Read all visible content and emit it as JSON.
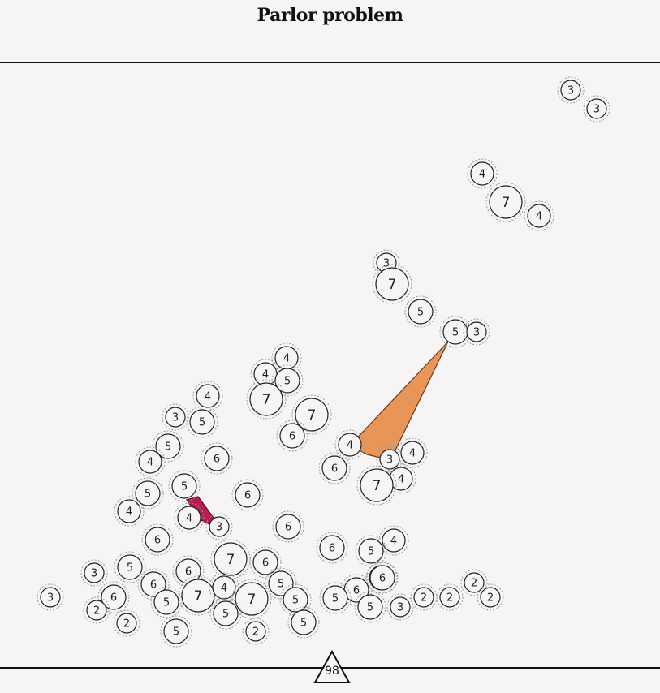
{
  "title": "Parlor problem",
  "score": "98",
  "colors": {
    "orange_region": "#e8955a",
    "crimson_region": "#b81e4f",
    "background": "#f6f4f5"
  },
  "nodes": [
    {
      "v": 3
    },
    {
      "v": 3
    },
    {
      "v": 4
    },
    {
      "v": 7
    },
    {
      "v": 4
    },
    {
      "v": 3
    },
    {
      "v": 7
    },
    {
      "v": 5
    },
    {
      "v": 5
    },
    {
      "v": 3
    },
    {
      "v": 4
    },
    {
      "v": 4
    },
    {
      "v": 5
    },
    {
      "v": 7
    },
    {
      "v": 7
    },
    {
      "v": 6
    },
    {
      "v": 4
    },
    {
      "v": 3
    },
    {
      "v": 5
    },
    {
      "v": 5
    },
    {
      "v": 6
    },
    {
      "v": 4
    },
    {
      "v": 4
    },
    {
      "v": 6
    },
    {
      "v": 3
    },
    {
      "v": 4
    },
    {
      "v": 4
    },
    {
      "v": 7
    },
    {
      "v": 5
    },
    {
      "v": 6
    },
    {
      "v": 4
    },
    {
      "v": 5
    },
    {
      "v": 4
    },
    {
      "v": 3
    },
    {
      "v": 6
    },
    {
      "v": 6
    },
    {
      "v": 6
    },
    {
      "v": 4
    },
    {
      "v": 5
    },
    {
      "v": 6
    },
    {
      "v": 3
    },
    {
      "v": 5
    },
    {
      "v": 7
    },
    {
      "v": 6
    },
    {
      "v": 6
    },
    {
      "v": 6
    },
    {
      "v": 6
    },
    {
      "v": 7
    },
    {
      "v": 4
    },
    {
      "v": 5
    },
    {
      "v": 7
    },
    {
      "v": 6
    },
    {
      "v": 5
    },
    {
      "v": 5
    },
    {
      "v": 5
    },
    {
      "v": 5
    },
    {
      "v": 3
    },
    {
      "v": 6
    },
    {
      "v": 3
    },
    {
      "v": 2
    },
    {
      "v": 2
    },
    {
      "v": 5
    },
    {
      "v": 2
    },
    {
      "v": 5
    },
    {
      "v": 5
    },
    {
      "v": 2
    },
    {
      "v": 2
    },
    {
      "v": 2
    },
    {
      "v": 2
    }
  ]
}
